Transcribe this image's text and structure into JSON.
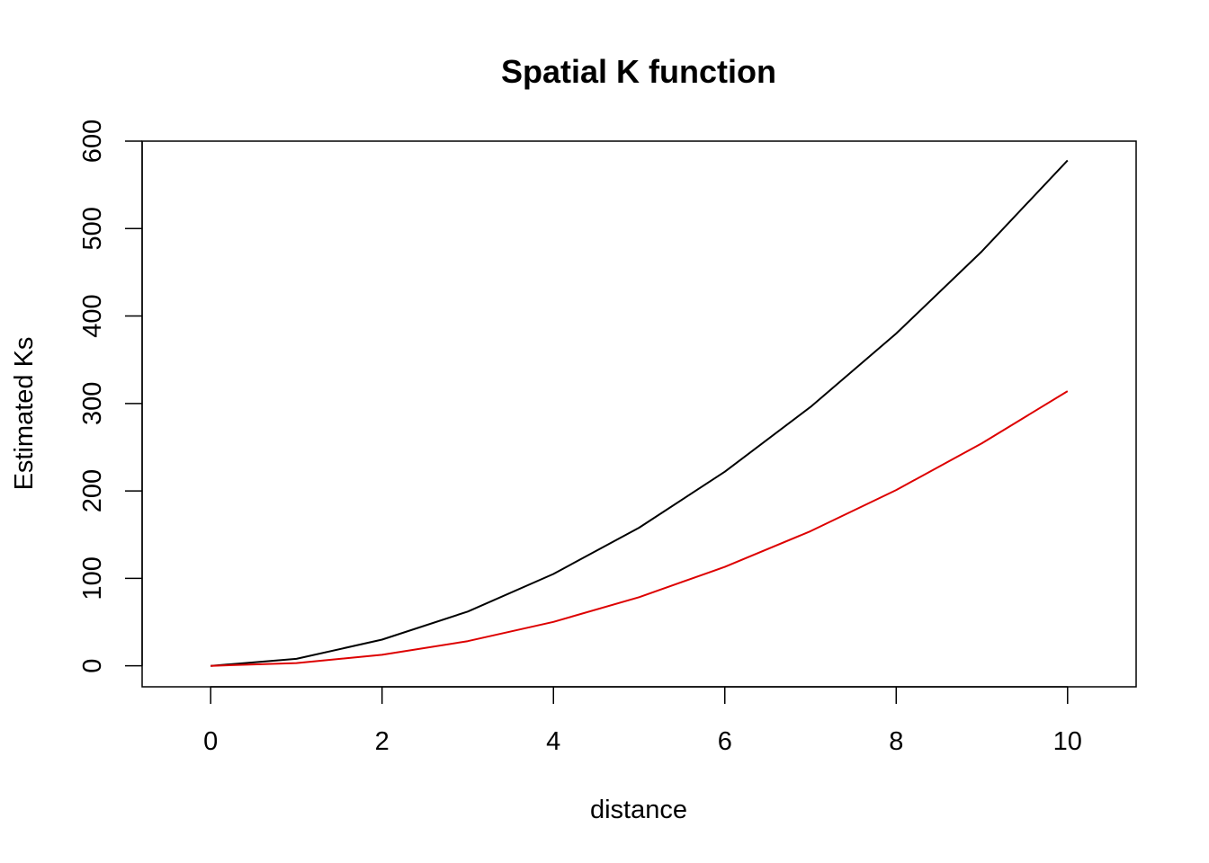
{
  "chart_data": {
    "type": "line",
    "title": "Spatial K function",
    "xlabel": "distance",
    "ylabel": "Estimated Ks",
    "xlim": [
      -0.8,
      10.8
    ],
    "ylim": [
      -24,
      600
    ],
    "x_ticks": [
      0,
      2,
      4,
      6,
      8,
      10
    ],
    "y_ticks": [
      0,
      100,
      200,
      300,
      400,
      500,
      600
    ],
    "grid": false,
    "legend": "none",
    "x": [
      0,
      1,
      2,
      3,
      4,
      5,
      6,
      7,
      8,
      9,
      10
    ],
    "series": [
      {
        "color": "#000000",
        "values": [
          0,
          8,
          30,
          62,
          105,
          158,
          222,
          296,
          380,
          474,
          578
        ]
      },
      {
        "color": "#dd0000",
        "values": [
          0,
          3.14,
          12.57,
          28.27,
          50.27,
          78.54,
          113.1,
          153.94,
          201.06,
          254.47,
          314.16
        ]
      }
    ]
  }
}
